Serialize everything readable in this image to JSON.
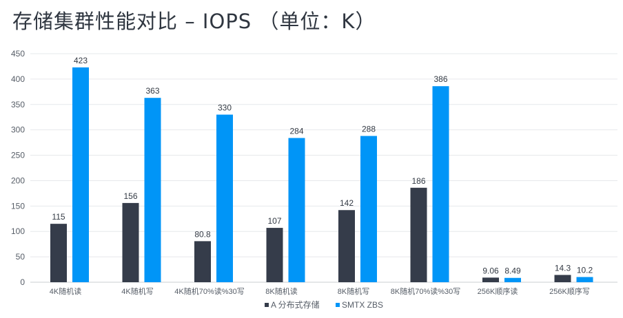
{
  "chart_data": {
    "type": "bar",
    "title": "存储集群性能对比 – IOPS （单位：K）",
    "categories": [
      "4K随机读",
      "4K随机写",
      "4K随机70%读%30写",
      "8K随机读",
      "8K随机写",
      "8K随机70%读%30写",
      "256K顺序读",
      "256K顺序写"
    ],
    "series": [
      {
        "name": "A 分布式存储",
        "color": "#353c4a",
        "values": [
          115,
          156,
          80.8,
          107,
          142,
          186,
          9.06,
          14.3
        ]
      },
      {
        "name": "SMTX ZBS",
        "color": "#0095f7",
        "values": [
          423,
          363,
          330,
          284,
          288,
          386,
          8.49,
          10.2
        ]
      }
    ],
    "data_labels": [
      [
        "115",
        "156",
        "80.8",
        "107",
        "142",
        "186",
        "9.06",
        "14.3"
      ],
      [
        "423",
        "363",
        "330",
        "284",
        "288",
        "386",
        "8.49",
        "10.2"
      ]
    ],
    "ylim": [
      0,
      450
    ],
    "yticks": [
      "0",
      "50",
      "100",
      "150",
      "200",
      "250",
      "300",
      "350",
      "400",
      "450"
    ],
    "grid": true,
    "legend": "bottom"
  }
}
